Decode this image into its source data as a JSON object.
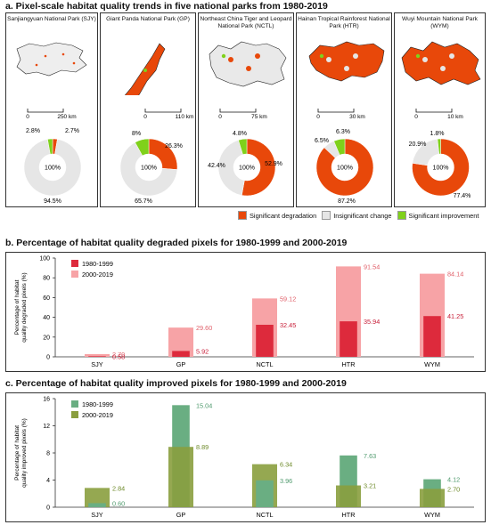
{
  "titles": {
    "a": "a. Pixel-scale habitat quality trends in five national parks from 1980-2019",
    "b": "b. Percentage of habitat quality degraded pixels for 1980-1999 and 2000-2019",
    "c": "c. Percentage of habitat quality improved pixels for 1980-1999 and 2000-2019"
  },
  "colors": {
    "degradation": "#e8480a",
    "insignificant": "#e6e6e6",
    "improvement": "#7fd11b",
    "deg_dark": "#dd2a3c",
    "deg_light": "#f7a3a6",
    "imp_dark": "#6aae82",
    "imp_light": "#8a9e3e"
  },
  "legend_a": {
    "degradation": "Significant degradation",
    "insignificant": "Insignificant change",
    "improvement": "Significant improvement"
  },
  "parks": [
    {
      "name": "Sanjiangyuan National Park (SJY)",
      "scale_zero": "0",
      "scale_label": "250 km",
      "center": "100%",
      "degradation": 2.7,
      "insignificant": 94.5,
      "improvement": 2.8,
      "labels": {
        "degradation": "2.7%",
        "insignificant": "94.5%",
        "improvement": "2.8%"
      }
    },
    {
      "name": "Giant Panda National Park (GP)",
      "scale_zero": "0",
      "scale_label": "110 km",
      "center": "100%",
      "degradation": 26.3,
      "insignificant": 65.7,
      "improvement": 8.0,
      "labels": {
        "degradation": "26.3%",
        "insignificant": "65.7%",
        "improvement": "8%"
      }
    },
    {
      "name": "Northeast China Tiger and Leopard National Park (NCTL)",
      "scale_zero": "0",
      "scale_label": "75 km",
      "center": "100%",
      "degradation": 52.9,
      "insignificant": 42.4,
      "improvement": 4.8,
      "labels": {
        "degradation": "52.9%",
        "insignificant": "42.4%",
        "improvement": "4.8%"
      }
    },
    {
      "name": "Hainan Tropical  Rainforest National Park (HTR)",
      "scale_zero": "0",
      "scale_label": "30 km",
      "center": "100%",
      "degradation": 87.2,
      "insignificant": 6.5,
      "improvement": 6.3,
      "labels": {
        "degradation": "87.2%",
        "insignificant": "6.5%",
        "improvement": "6.3%"
      }
    },
    {
      "name": "Wuyi Mountain National Park (WYM)",
      "scale_zero": "0",
      "scale_label": "10 km",
      "center": "100%",
      "degradation": 77.4,
      "insignificant": 20.9,
      "improvement": 1.8,
      "labels": {
        "degradation": "77.4%",
        "insignificant": "20.9%",
        "improvement": "1.8%"
      }
    }
  ],
  "chart_data": [
    {
      "type": "bar",
      "title": "b. Percentage of habitat quality degraded pixels for 1980-1999 and 2000-2019",
      "ylabel": "Percentage of habitat quality degraded pixels (%)",
      "xlabel": "",
      "categories": [
        "SJY",
        "GP",
        "NCTL",
        "HTR",
        "WYM"
      ],
      "ylim": [
        0,
        100
      ],
      "yticks": [
        0,
        20,
        40,
        60,
        80,
        100
      ],
      "legend": "top-left",
      "series": [
        {
          "name": "1980-1999",
          "values": [
            0.58,
            5.92,
            32.45,
            35.94,
            41.25
          ],
          "labels": [
            "0.58",
            "5.92",
            "32.45",
            "35.94",
            "41.25"
          ]
        },
        {
          "name": "2000-2019",
          "values": [
            2.7,
            29.6,
            59.12,
            91.54,
            84.14
          ],
          "labels": [
            "2.70",
            "29.60",
            "59.12",
            "91.54",
            "84.14"
          ]
        }
      ]
    },
    {
      "type": "bar",
      "title": "c. Percentage of habitat quality improved pixels for 1980-1999 and 2000-2019",
      "ylabel": "Percentage of habitat quality improved pixels (%)",
      "xlabel": "",
      "categories": [
        "SJY",
        "GP",
        "NCTL",
        "HTR",
        "WYM"
      ],
      "ylim": [
        0,
        16
      ],
      "yticks": [
        0,
        4,
        8,
        12,
        16
      ],
      "legend": "top-left",
      "series": [
        {
          "name": "1980-1999",
          "values": [
            0.6,
            15.04,
            3.96,
            7.63,
            4.12
          ],
          "labels": [
            "0.60",
            "15.04",
            "3.96",
            "7.63",
            "4.12"
          ]
        },
        {
          "name": "2000-2019",
          "values": [
            2.84,
            8.89,
            6.34,
            3.21,
            2.7
          ],
          "labels": [
            "2.84",
            "8.89",
            "6.34",
            "3.21",
            "2.70"
          ]
        }
      ]
    }
  ]
}
